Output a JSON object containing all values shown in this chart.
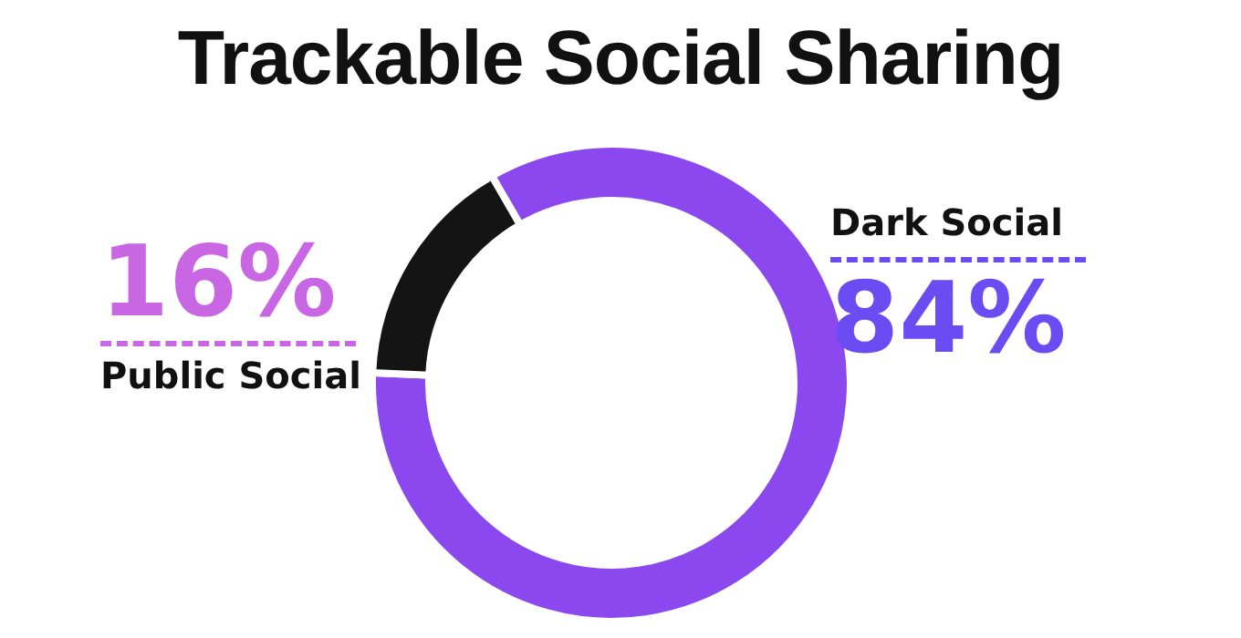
{
  "chart_data": {
    "type": "donut",
    "title": "Trackable Social Sharing",
    "categories": [
      "Dark Social",
      "Public Social"
    ],
    "values": [
      84,
      16
    ],
    "colors": [
      "#8a48ee",
      "#141414"
    ],
    "value_labels": [
      "84%",
      "16%"
    ]
  }
}
